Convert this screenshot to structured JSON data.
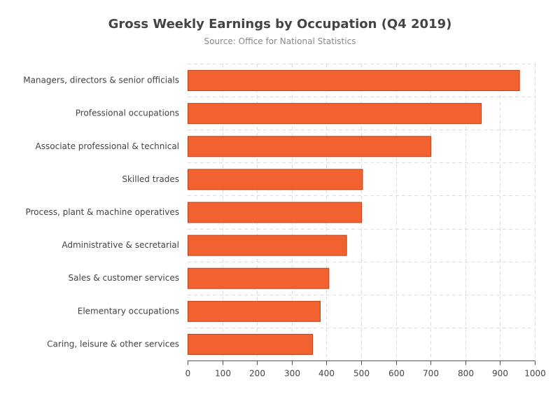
{
  "chart_data": {
    "type": "bar",
    "orientation": "horizontal",
    "title": "Gross Weekly Earnings by Occupation (Q4 2019)",
    "subtitle": "Source: Office for National Statistics",
    "xlabel": "",
    "ylabel": "",
    "categories": [
      "Managers, directors & senior officials",
      "Professional occupations",
      "Associate professional & technical",
      "Skilled trades",
      "Process, plant & machine operatives",
      "Administrative & secretarial",
      "Sales & customer services",
      "Elementary occupations",
      "Caring, leisure & other services"
    ],
    "values": [
      955,
      845,
      700,
      503,
      500,
      457,
      406,
      381,
      359
    ],
    "xlim": [
      0,
      1000
    ],
    "ticks": [
      "0",
      "100",
      "200",
      "300",
      "400",
      "500",
      "600",
      "700",
      "800",
      "900",
      "1000"
    ],
    "grid": true,
    "legend": "none",
    "colors": {
      "bar_fill": "#f26230",
      "bar_stroke": "#b8441c"
    }
  }
}
